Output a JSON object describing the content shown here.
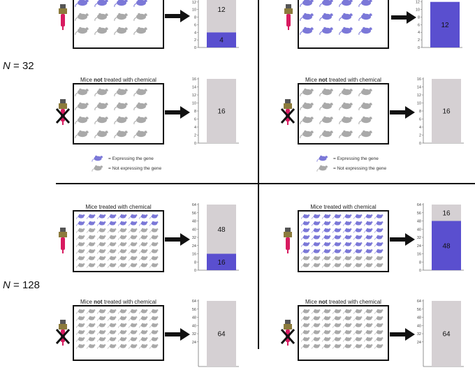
{
  "labels": {
    "n32": "= 32",
    "n128": "= 128",
    "n_var": "N"
  },
  "titles": {
    "treated": "Mice treated with chemical",
    "not_prefix": "Mice ",
    "not_word": "not",
    "not_suffix": " treated with chemical"
  },
  "legend": {
    "expressing": "= Expressing the gene",
    "not_expressing": "= Not expressing the gene"
  },
  "colors": {
    "expressing": "#5a4fcf",
    "not_expressing": "#d5d0d3",
    "mouse_blue": "#7b78d8",
    "mouse_gray": "#a9a9a9",
    "dropper_red": "#d81b60"
  },
  "chart_data": [
    {
      "type": "bar",
      "id": "tl-treated",
      "ylim": [
        0,
        16
      ],
      "ticks": [
        0,
        2,
        4,
        6,
        8,
        10,
        12
      ],
      "expressing": 4,
      "not_expressing": 12,
      "labels": [
        "4",
        "12"
      ]
    },
    {
      "type": "bar",
      "id": "tr-treated",
      "ylim": [
        0,
        12
      ],
      "ticks": [
        0,
        2,
        4,
        6,
        8,
        10,
        12
      ],
      "expressing": 12,
      "not_expressing": 0,
      "labels": [
        "12"
      ]
    },
    {
      "type": "bar",
      "id": "tl-not",
      "ylim": [
        0,
        16
      ],
      "ticks": [
        0,
        2,
        4,
        6,
        8,
        10,
        12,
        14,
        16
      ],
      "expressing": 0,
      "not_expressing": 16,
      "labels": [
        "16"
      ]
    },
    {
      "type": "bar",
      "id": "tr-not",
      "ylim": [
        0,
        16
      ],
      "ticks": [
        0,
        2,
        4,
        6,
        8,
        10,
        12,
        14,
        16
      ],
      "expressing": 0,
      "not_expressing": 16,
      "labels": [
        "16"
      ]
    },
    {
      "type": "bar",
      "id": "bl-treated",
      "ylim": [
        0,
        64
      ],
      "ticks": [
        0,
        8,
        16,
        24,
        32,
        40,
        48,
        56,
        64
      ],
      "expressing": 16,
      "not_expressing": 48,
      "labels": [
        "16",
        "48"
      ]
    },
    {
      "type": "bar",
      "id": "br-treated",
      "ylim": [
        0,
        64
      ],
      "ticks": [
        0,
        8,
        16,
        24,
        32,
        40,
        48,
        56,
        64
      ],
      "expressing": 48,
      "not_expressing": 16,
      "labels": [
        "48",
        "16"
      ]
    },
    {
      "type": "bar",
      "id": "bl-not",
      "ylim": [
        0,
        64
      ],
      "ticks": [
        24,
        32,
        40,
        48,
        56,
        64
      ],
      "expressing": 0,
      "not_expressing": 64,
      "labels": [
        "64"
      ]
    },
    {
      "type": "bar",
      "id": "br-not",
      "ylim": [
        0,
        64
      ],
      "ticks": [
        24,
        32,
        40,
        48,
        56,
        64
      ],
      "expressing": 0,
      "not_expressing": 64,
      "labels": [
        "64"
      ]
    }
  ]
}
